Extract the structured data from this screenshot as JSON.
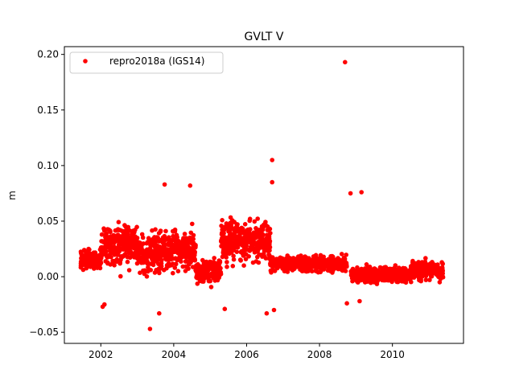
{
  "chart_data": {
    "type": "scatter",
    "title": "GVLT V",
    "xlabel": "",
    "ylabel": "m",
    "xlim": [
      2001.0,
      2011.95
    ],
    "ylim": [
      -0.06,
      0.207
    ],
    "xticks": [
      2002,
      2004,
      2006,
      2008,
      2010
    ],
    "xtick_labels": [
      "2002",
      "2004",
      "2006",
      "2008",
      "2010"
    ],
    "yticks": [
      -0.05,
      0.0,
      0.05,
      0.1,
      0.15,
      0.2
    ],
    "ytick_labels": [
      "−0.05",
      "0.00",
      "0.05",
      "0.10",
      "0.15",
      "0.20"
    ],
    "grid": false,
    "legend_position": "upper left",
    "series": [
      {
        "name": "repro2018a (IGS14)",
        "color": "#ff0000",
        "marker": "circle",
        "segments": [
          {
            "x0": 2001.45,
            "x1": 2002.0,
            "mean": 0.015,
            "spread": 0.008
          },
          {
            "x0": 2002.0,
            "x1": 2003.0,
            "mean": 0.028,
            "spread": 0.017
          },
          {
            "x0": 2003.0,
            "x1": 2003.7,
            "mean": 0.022,
            "spread": 0.016
          },
          {
            "x0": 2003.7,
            "x1": 2004.6,
            "mean": 0.025,
            "spread": 0.016
          },
          {
            "x0": 2004.6,
            "x1": 2005.3,
            "mean": 0.006,
            "spread": 0.009
          },
          {
            "x0": 2005.3,
            "x1": 2006.65,
            "mean": 0.032,
            "spread": 0.016
          },
          {
            "x0": 2006.65,
            "x1": 2008.75,
            "mean": 0.012,
            "spread": 0.006
          },
          {
            "x0": 2008.85,
            "x1": 2010.5,
            "mean": 0.002,
            "spread": 0.006
          },
          {
            "x0": 2010.5,
            "x1": 2011.4,
            "mean": 0.006,
            "spread": 0.007
          }
        ],
        "outliers": [
          {
            "x": 2003.35,
            "y": -0.047
          },
          {
            "x": 2003.6,
            "y": -0.033
          },
          {
            "x": 2005.4,
            "y": -0.029
          },
          {
            "x": 2006.7,
            "y": 0.105
          },
          {
            "x": 2006.7,
            "y": 0.085
          },
          {
            "x": 2008.7,
            "y": 0.193
          },
          {
            "x": 2008.85,
            "y": 0.075
          },
          {
            "x": 2009.15,
            "y": 0.076
          },
          {
            "x": 2008.75,
            "y": -0.024
          },
          {
            "x": 2009.1,
            "y": -0.022
          },
          {
            "x": 2003.75,
            "y": 0.083
          },
          {
            "x": 2004.45,
            "y": 0.082
          },
          {
            "x": 2006.55,
            "y": -0.033
          },
          {
            "x": 2002.05,
            "y": -0.027
          },
          {
            "x": 2002.1,
            "y": -0.025
          },
          {
            "x": 2006.75,
            "y": -0.03
          }
        ]
      }
    ]
  }
}
